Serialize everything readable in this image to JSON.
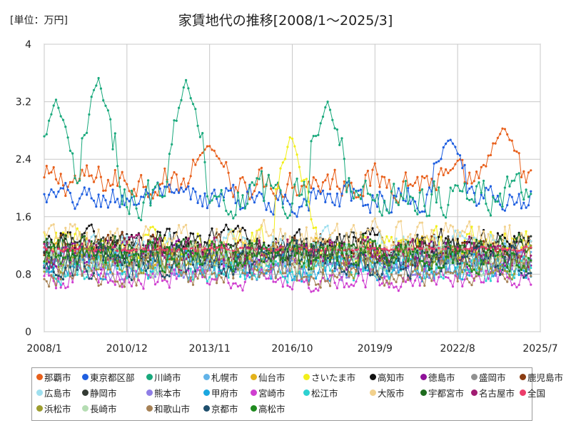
{
  "chart_data": {
    "type": "line",
    "title": "家賃地代の推移[2008/1～2025/3]",
    "unit_label": "[単位：万円]",
    "x_start": "2008/1",
    "x_end": "2025/7",
    "x_ticks": [
      "2008/1",
      "2010/12",
      "2013/11",
      "2016/10",
      "2019/9",
      "2022/8",
      "2025/7"
    ],
    "y_ticks": [
      "0",
      "0.8",
      "1.6",
      "2.4",
      "3.2",
      "4"
    ],
    "ylim": [
      0,
      4
    ],
    "grid": true,
    "legend_position": "bottom",
    "series": [
      {
        "name": "那覇市",
        "color": "#e8601c",
        "base": 2.1,
        "amp": 0.35,
        "peaks": [
          [
            2013.8,
            2.6
          ],
          [
            2024.2,
            2.85
          ]
        ]
      },
      {
        "name": "東京都区部",
        "color": "#1f5fe0",
        "base": 1.85,
        "amp": 0.3,
        "peaks": [
          [
            2022.3,
            2.7
          ]
        ]
      },
      {
        "name": "川崎市",
        "color": "#19a97c",
        "base": 1.9,
        "amp": 0.45,
        "peaks": [
          [
            2008.4,
            3.25
          ],
          [
            2009.9,
            3.55
          ],
          [
            2013.0,
            3.5
          ],
          [
            2018.0,
            3.2
          ]
        ]
      },
      {
        "name": "札幌市",
        "color": "#62b3e8",
        "base": 1.05,
        "amp": 0.3,
        "peaks": []
      },
      {
        "name": "仙台市",
        "color": "#e3b21b",
        "base": 1.1,
        "amp": 0.3,
        "peaks": []
      },
      {
        "name": "さいたま市",
        "color": "#f2ef1b",
        "base": 1.2,
        "amp": 0.35,
        "peaks": [
          [
            2016.7,
            2.75
          ]
        ]
      },
      {
        "name": "高知市",
        "color": "#111111",
        "base": 1.25,
        "amp": 0.3,
        "peaks": []
      },
      {
        "name": "徳島市",
        "color": "#8e1199",
        "base": 1.05,
        "amp": 0.3,
        "peaks": []
      },
      {
        "name": "盛岡市",
        "color": "#909090",
        "base": 1.0,
        "amp": 0.3,
        "peaks": []
      },
      {
        "name": "鹿児島市",
        "color": "#8a3c12",
        "base": 1.15,
        "amp": 0.3,
        "peaks": []
      },
      {
        "name": "広島市",
        "color": "#9fe0ef",
        "base": 1.2,
        "amp": 0.3,
        "peaks": []
      },
      {
        "name": "静岡市",
        "color": "#333a33",
        "base": 1.15,
        "amp": 0.3,
        "peaks": []
      },
      {
        "name": "熊本市",
        "color": "#8f7ee6",
        "base": 0.9,
        "amp": 0.25,
        "peaks": []
      },
      {
        "name": "甲府市",
        "color": "#1aa7e0",
        "base": 0.9,
        "amp": 0.3,
        "peaks": []
      },
      {
        "name": "宮崎市",
        "color": "#cf3fd0",
        "base": 0.75,
        "amp": 0.25,
        "peaks": []
      },
      {
        "name": "松江市",
        "color": "#2dd1d1",
        "base": 0.9,
        "amp": 0.3,
        "peaks": []
      },
      {
        "name": "大阪市",
        "color": "#f2d18d",
        "base": 1.3,
        "amp": 0.35,
        "peaks": []
      },
      {
        "name": "宇都宮市",
        "color": "#1d6b1d",
        "base": 1.15,
        "amp": 0.3,
        "peaks": []
      },
      {
        "name": "名古屋市",
        "color": "#a11c72",
        "base": 1.1,
        "amp": 0.3,
        "peaks": []
      },
      {
        "name": "全国",
        "color": "#ec3d6a",
        "base": 1.15,
        "amp": 0.05,
        "peaks": []
      },
      {
        "name": "浜松市",
        "color": "#9d9d2e",
        "base": 1.0,
        "amp": 0.3,
        "peaks": []
      },
      {
        "name": "長崎市",
        "color": "#b5ddb3",
        "base": 1.0,
        "amp": 0.3,
        "peaks": []
      },
      {
        "name": "和歌山市",
        "color": "#a68155",
        "base": 0.85,
        "amp": 0.3,
        "peaks": []
      },
      {
        "name": "京都市",
        "color": "#1e4f6d",
        "base": 1.0,
        "amp": 0.35,
        "peaks": []
      },
      {
        "name": "高松市",
        "color": "#1f8a1f",
        "base": 1.05,
        "amp": 0.3,
        "peaks": []
      }
    ]
  }
}
